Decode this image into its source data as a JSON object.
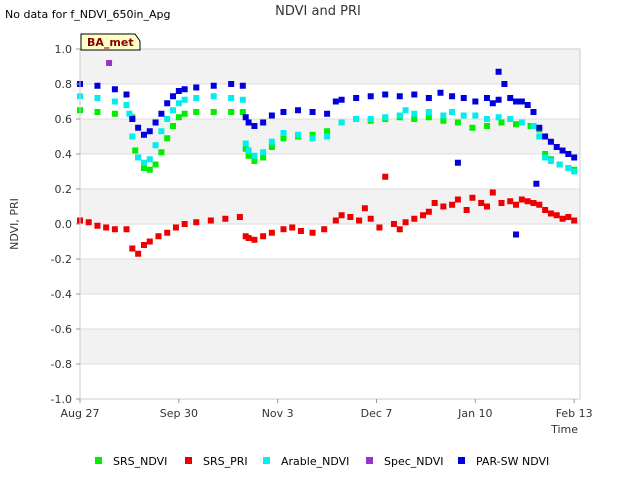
{
  "title": "NDVI and PRI",
  "no_data_note": "No data for f_NDVI_650in_Apg",
  "site_tag": "BA_met",
  "chart_data": {
    "type": "scatter",
    "title": "NDVI and PRI",
    "xlabel": "Time",
    "ylabel": "NDVI, PRI",
    "ylim": [
      -1.0,
      1.0
    ],
    "xlim": [
      0,
      172
    ],
    "y_ticks": [
      "1.0",
      "0.8",
      "0.6",
      "0.4",
      "0.2",
      "0.0",
      "-0.2",
      "-0.4",
      "-0.6",
      "-0.8",
      "-1.0"
    ],
    "x_ticks": [
      {
        "label": "Aug 27",
        "day": 0
      },
      {
        "label": "Sep 30",
        "day": 34
      },
      {
        "label": "Nov 3",
        "day": 68
      },
      {
        "label": "Dec 7",
        "day": 102
      },
      {
        "label": "Jan 10",
        "day": 136
      },
      {
        "label": "Feb 13",
        "day": 170
      }
    ],
    "grid": true,
    "legend_position": "bottom",
    "series": [
      {
        "name": "SRS_NDVI",
        "color": "#00ee00",
        "x": [
          0,
          6,
          12,
          18,
          19,
          20,
          22,
          24,
          26,
          28,
          30,
          32,
          34,
          36,
          40,
          46,
          52,
          56,
          57,
          58,
          60,
          63,
          66,
          70,
          75,
          80,
          85,
          90,
          95,
          100,
          105,
          110,
          115,
          120,
          125,
          130,
          135,
          140,
          145,
          150,
          155,
          158,
          160,
          162,
          165,
          168,
          170
        ],
        "y": [
          0.65,
          0.64,
          0.63,
          0.61,
          0.42,
          0.38,
          0.32,
          0.31,
          0.34,
          0.41,
          0.49,
          0.56,
          0.61,
          0.63,
          0.64,
          0.64,
          0.64,
          0.64,
          0.43,
          0.39,
          0.36,
          0.38,
          0.44,
          0.49,
          0.5,
          0.51,
          0.53,
          0.58,
          0.6,
          0.59,
          0.6,
          0.61,
          0.6,
          0.61,
          0.59,
          0.58,
          0.55,
          0.56,
          0.58,
          0.57,
          0.56,
          0.54,
          0.4,
          0.37,
          0.34,
          0.32,
          0.31
        ]
      },
      {
        "name": "SRS_PRI",
        "color": "#ee0000",
        "x": [
          0,
          3,
          6,
          9,
          12,
          16,
          18,
          20,
          22,
          24,
          27,
          30,
          33,
          36,
          40,
          45,
          50,
          55,
          57,
          58,
          60,
          63,
          66,
          70,
          73,
          76,
          80,
          84,
          88,
          90,
          93,
          96,
          98,
          100,
          103,
          105,
          108,
          110,
          112,
          115,
          118,
          120,
          122,
          125,
          128,
          130,
          133,
          135,
          138,
          140,
          142,
          145,
          148,
          150,
          152,
          154,
          156,
          158,
          160,
          162,
          164,
          166,
          168,
          170
        ],
        "y": [
          0.02,
          0.01,
          -0.01,
          -0.02,
          -0.03,
          -0.03,
          -0.14,
          -0.17,
          -0.12,
          -0.1,
          -0.07,
          -0.05,
          -0.02,
          0.0,
          0.01,
          0.02,
          0.03,
          0.04,
          -0.07,
          -0.08,
          -0.09,
          -0.07,
          -0.05,
          -0.03,
          -0.02,
          -0.04,
          -0.05,
          -0.03,
          0.02,
          0.05,
          0.04,
          0.02,
          0.09,
          0.03,
          -0.02,
          0.27,
          0.0,
          -0.03,
          0.01,
          0.03,
          0.05,
          0.07,
          0.12,
          0.1,
          0.11,
          0.14,
          0.08,
          0.15,
          0.12,
          0.1,
          0.18,
          0.12,
          0.13,
          0.11,
          0.14,
          0.13,
          0.12,
          0.11,
          0.08,
          0.06,
          0.05,
          0.03,
          0.04,
          0.02
        ]
      },
      {
        "name": "Arable_NDVI",
        "color": "#00eeee",
        "x": [
          0,
          6,
          12,
          16,
          17,
          18,
          20,
          22,
          24,
          26,
          28,
          30,
          32,
          34,
          36,
          40,
          46,
          52,
          56,
          57,
          58,
          60,
          63,
          66,
          70,
          75,
          80,
          85,
          90,
          95,
          100,
          105,
          110,
          112,
          115,
          120,
          125,
          128,
          132,
          136,
          140,
          144,
          148,
          152,
          156,
          158,
          160,
          162,
          165,
          168,
          170
        ],
        "y": [
          0.73,
          0.72,
          0.7,
          0.68,
          0.63,
          0.5,
          0.38,
          0.35,
          0.37,
          0.45,
          0.53,
          0.6,
          0.65,
          0.69,
          0.71,
          0.72,
          0.73,
          0.72,
          0.71,
          0.46,
          0.42,
          0.39,
          0.41,
          0.47,
          0.52,
          0.51,
          0.49,
          0.5,
          0.58,
          0.6,
          0.6,
          0.61,
          0.62,
          0.65,
          0.63,
          0.64,
          0.62,
          0.64,
          0.62,
          0.62,
          0.6,
          0.61,
          0.6,
          0.58,
          0.56,
          0.5,
          0.38,
          0.36,
          0.34,
          0.32,
          0.3
        ]
      },
      {
        "name": "Spec_NDVI",
        "color": "#9932cc",
        "x": [
          10
        ],
        "y": [
          0.92
        ]
      },
      {
        "name": "PAR-SW NDVI",
        "color": "#0000dd",
        "x": [
          0,
          6,
          12,
          16,
          18,
          20,
          22,
          24,
          26,
          28,
          30,
          32,
          34,
          36,
          40,
          46,
          52,
          56,
          57,
          58,
          60,
          63,
          66,
          70,
          75,
          80,
          85,
          88,
          90,
          95,
          100,
          105,
          110,
          115,
          120,
          124,
          128,
          132,
          136,
          140,
          142,
          144,
          146,
          148,
          150,
          152,
          154,
          156,
          158,
          160,
          162,
          164,
          166,
          168,
          170,
          144,
          150,
          157,
          130
        ],
        "y": [
          0.8,
          0.79,
          0.77,
          0.74,
          0.6,
          0.55,
          0.51,
          0.53,
          0.58,
          0.63,
          0.69,
          0.73,
          0.76,
          0.77,
          0.78,
          0.79,
          0.8,
          0.79,
          0.61,
          0.58,
          0.56,
          0.58,
          0.62,
          0.64,
          0.65,
          0.64,
          0.63,
          0.7,
          0.71,
          0.72,
          0.73,
          0.74,
          0.73,
          0.74,
          0.72,
          0.75,
          0.73,
          0.72,
          0.7,
          0.72,
          0.69,
          0.71,
          0.8,
          0.72,
          0.7,
          0.7,
          0.68,
          0.64,
          0.55,
          0.5,
          0.47,
          0.44,
          0.42,
          0.4,
          0.38,
          0.87,
          -0.06,
          0.23,
          0.35
        ]
      }
    ]
  }
}
